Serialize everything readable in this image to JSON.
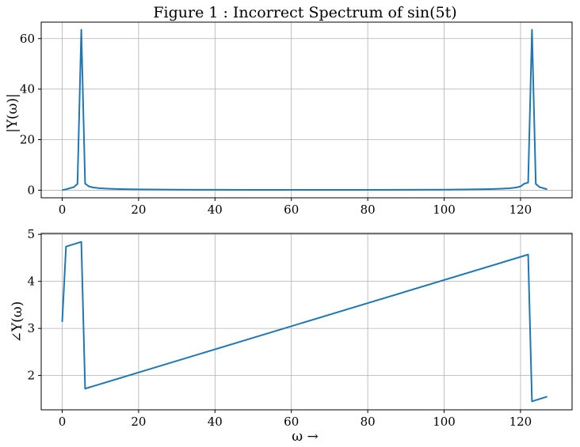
{
  "colors": {
    "series": "#1f77b4",
    "grid": "#b0b0b0"
  },
  "chart_data": [
    {
      "type": "line",
      "title": "Figure 1 : Incorrect Spectrum of sin(5t)",
      "xlabel": "",
      "ylabel": "|Y(ω)|",
      "xlim": [
        -5.5,
        133.5
      ],
      "ylim": [
        -3,
        66.5
      ],
      "xticks": [
        0,
        20,
        40,
        60,
        80,
        100,
        120
      ],
      "yticks": [
        0,
        20,
        40,
        60
      ],
      "xtick_labels": [
        "0",
        "20",
        "40",
        "60",
        "80",
        "100",
        "120"
      ],
      "ytick_labels": [
        "0",
        "20",
        "40",
        "60"
      ],
      "grid": true,
      "series": [
        {
          "x": [
            0,
            1,
            2,
            3,
            4,
            5,
            6,
            7,
            8,
            9,
            10,
            12,
            15,
            20,
            30,
            40,
            50,
            60,
            64,
            70,
            80,
            90,
            100,
            107,
            112,
            115,
            117,
            118,
            119,
            120,
            121,
            122,
            123,
            124,
            125,
            126,
            127
          ],
          "y": [
            0.05,
            0.35,
            0.8,
            1.2,
            2.5,
            63.5,
            2.6,
            1.5,
            1.1,
            0.9,
            0.75,
            0.6,
            0.45,
            0.32,
            0.22,
            0.17,
            0.15,
            0.14,
            0.13,
            0.14,
            0.15,
            0.17,
            0.22,
            0.32,
            0.45,
            0.6,
            0.75,
            0.9,
            1.1,
            1.5,
            2.6,
            3.0,
            63.5,
            2.5,
            1.2,
            0.8,
            0.35
          ]
        }
      ]
    },
    {
      "type": "line",
      "title": "",
      "xlabel": "ω →",
      "ylabel": "∠Y(ω)",
      "xlim": [
        -5.5,
        133.5
      ],
      "ylim": [
        1.27,
        5.02
      ],
      "xticks": [
        0,
        20,
        40,
        60,
        80,
        100,
        120
      ],
      "yticks": [
        2,
        3,
        4,
        5
      ],
      "xtick_labels": [
        "0",
        "20",
        "40",
        "60",
        "80",
        "100",
        "120"
      ],
      "ytick_labels": [
        "2",
        "3",
        "4",
        "5"
      ],
      "grid": true,
      "series": [
        {
          "x": [
            0,
            1,
            5,
            6,
            122,
            123,
            127
          ],
          "y": [
            3.14,
            4.74,
            4.84,
            1.72,
            4.57,
            1.45,
            1.55
          ]
        }
      ]
    }
  ]
}
